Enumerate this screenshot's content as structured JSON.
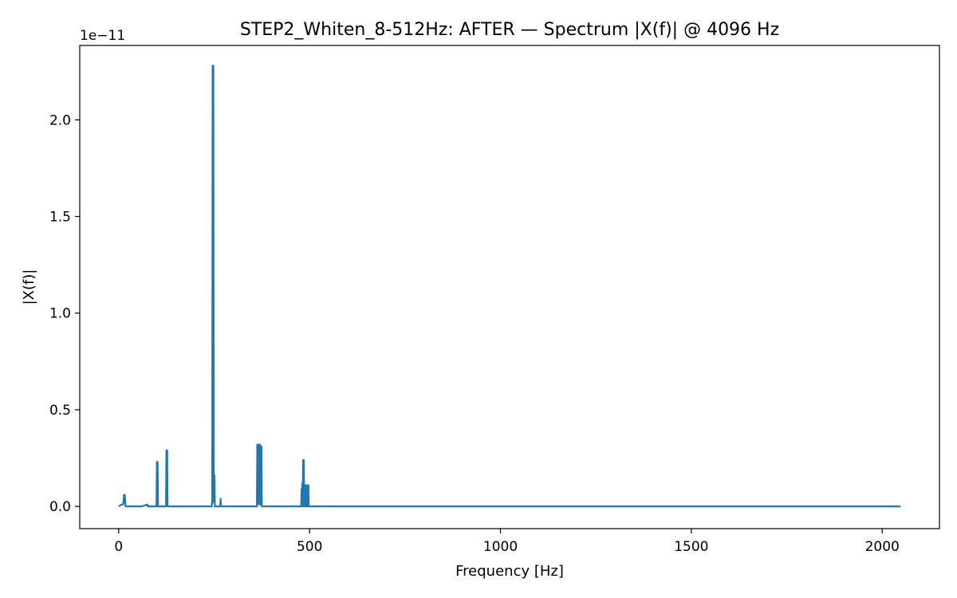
{
  "chart_data": {
    "type": "line",
    "title": "STEP2_Whiten_8-512Hz: AFTER — Spectrum |X(f)| @ 4096 Hz",
    "xlabel": "Frequency [Hz]",
    "ylabel": "|X(f)|",
    "y_offset_label": "1e−11",
    "xlim": [
      -102,
      2150
    ],
    "ylim": [
      -0.115,
      2.385
    ],
    "x_ticks": [
      0,
      500,
      1000,
      1500,
      2000
    ],
    "x_tick_labels": [
      "0",
      "500",
      "1000",
      "1500",
      "2000"
    ],
    "y_ticks": [
      0.0,
      0.5,
      1.0,
      1.5,
      2.0
    ],
    "y_tick_labels": [
      "0.0",
      "0.5",
      "1.0",
      "1.5",
      "2.0"
    ],
    "grid": false,
    "series": [
      {
        "color": "#1f77b4",
        "x": [
          0,
          8,
          12,
          14,
          15,
          16,
          18,
          30,
          60,
          75,
          76,
          80,
          99,
          100,
          101,
          102,
          103,
          124,
          125,
          126,
          127,
          128,
          244,
          245,
          246,
          247,
          248,
          249,
          250,
          251,
          252,
          266,
          267,
          268,
          269,
          362,
          363,
          364,
          366,
          367,
          368,
          369,
          370,
          371,
          372,
          373,
          374,
          375,
          380,
          478,
          479,
          480,
          481,
          482,
          483,
          484,
          485,
          486,
          487,
          488,
          489,
          490,
          491,
          492,
          493,
          494,
          495,
          496,
          497,
          498,
          512,
          520,
          2048
        ],
        "y": [
          0.0,
          0.01,
          0.01,
          0.06,
          0.02,
          0.06,
          0.0,
          0.0,
          0.0,
          0.01,
          0.0,
          0.0,
          0.0,
          0.23,
          0.02,
          0.23,
          0.0,
          0.0,
          0.29,
          0.01,
          0.29,
          0.0,
          0.0,
          0.04,
          2.28,
          0.02,
          2.28,
          0.16,
          0.03,
          0.16,
          0.0,
          0.0,
          0.04,
          0.0,
          0.0,
          0.0,
          0.32,
          0.01,
          0.32,
          0.02,
          0.31,
          0.01,
          0.32,
          0.01,
          0.31,
          0.02,
          0.31,
          0.0,
          0.0,
          0.0,
          0.09,
          0.0,
          0.12,
          0.0,
          0.24,
          0.01,
          0.24,
          0.0,
          0.1,
          0.0,
          0.11,
          0.0,
          0.1,
          0.0,
          0.11,
          0.0,
          0.11,
          0.0,
          0.11,
          0.0,
          0.0,
          0.0,
          0.0
        ]
      }
    ]
  }
}
